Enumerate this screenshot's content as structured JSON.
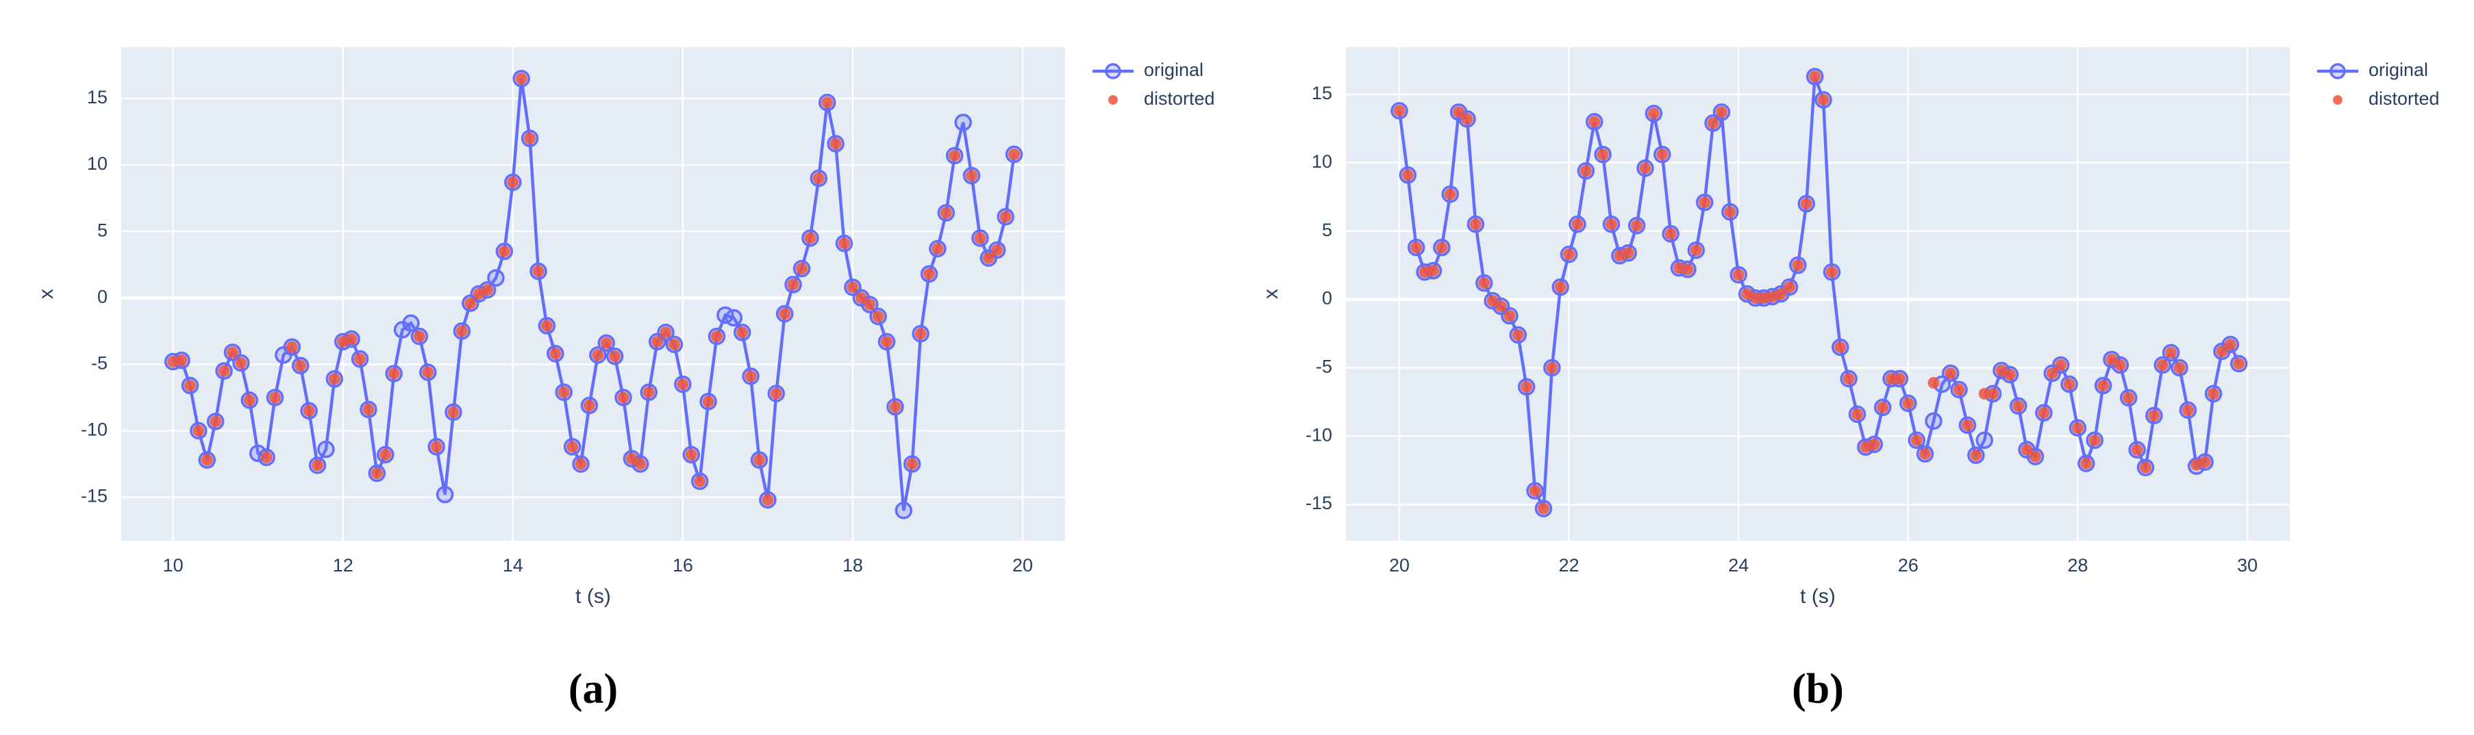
{
  "chart_data": [
    {
      "type": "line",
      "caption": "(a)",
      "x_label": "t (s)",
      "y_label": "x",
      "grid": true,
      "legend": "right",
      "x": [
        10,
        10.1,
        10.2,
        10.3,
        10.4,
        10.5,
        10.6,
        10.7,
        10.8,
        10.9,
        11,
        11.1,
        11.2,
        11.3,
        11.4,
        11.5,
        11.6,
        11.7,
        11.8,
        11.9,
        12,
        12.1,
        12.2,
        12.3,
        12.4,
        12.5,
        12.6,
        12.7,
        12.8,
        12.9,
        13,
        13.1,
        13.2,
        13.3,
        13.4,
        13.5,
        13.6,
        13.7,
        13.8,
        13.9,
        14,
        14.1,
        14.2,
        14.3,
        14.4,
        14.5,
        14.6,
        14.7,
        14.8,
        14.9,
        15,
        15.1,
        15.2,
        15.3,
        15.4,
        15.5,
        15.6,
        15.7,
        15.8,
        15.9,
        16,
        16.1,
        16.2,
        16.3,
        16.4,
        16.5,
        16.6,
        16.7,
        16.8,
        16.9,
        17,
        17.1,
        17.2,
        17.3,
        17.4,
        17.5,
        17.6,
        17.7,
        17.8,
        17.9,
        18,
        18.1,
        18.2,
        18.3,
        18.4,
        18.5,
        18.6,
        18.7,
        18.8,
        18.9,
        19,
        19.1,
        19.2,
        19.3,
        19.4,
        19.5,
        19.6,
        19.7,
        19.8,
        19.9
      ],
      "series": [
        {
          "name": "original",
          "color": "#636efa",
          "mode": "lines+markers",
          "values": [
            -4.8,
            -4.7,
            -6.6,
            -10,
            -12.2,
            -9.3,
            -5.5,
            -4.1,
            -4.9,
            -7.7,
            -11.7,
            -12,
            -7.5,
            -4.3,
            -3.7,
            -5.1,
            -8.5,
            -12.6,
            -11.4,
            -6.1,
            -3.3,
            -3.1,
            -4.6,
            -8.4,
            -13.2,
            -11.8,
            -5.7,
            -2.4,
            -1.9,
            -2.9,
            -5.6,
            -11.2,
            -14.8,
            -8.6,
            -2.5,
            -0.4,
            0.3,
            0.6,
            1.5,
            3.5,
            8.7,
            16.5,
            12,
            2,
            -2.1,
            -4.2,
            -7.1,
            -11.2,
            -12.5,
            -8.1,
            -4.3,
            -3.4,
            -4.4,
            -7.5,
            -12.1,
            -12.5,
            -7.1,
            -3.3,
            -2.6,
            -3.5,
            -6.5,
            -11.8,
            -13.8,
            -7.8,
            -2.9,
            -1.3,
            -1.5,
            -2.6,
            -5.9,
            -12.2,
            -15.2,
            -7.2,
            -1.2,
            1,
            2.2,
            4.5,
            9,
            14.7,
            11.6,
            4.1,
            0.8,
            0,
            -0.5,
            -1.4,
            -3.3,
            -8.2,
            -16,
            -12.5,
            -2.7,
            1.8,
            3.7,
            6.4,
            10.7,
            13.2,
            9.2,
            4.5,
            3,
            3.6,
            6.1,
            10.8
          ]
        },
        {
          "name": "distorted",
          "color": "#ef553b",
          "mode": "markers",
          "values": [
            -4.8,
            -4.7,
            -6.6,
            -10,
            -12.2,
            -9.3,
            -5.5,
            -4.1,
            -4.9,
            -7.7,
            null,
            -12,
            -7.5,
            null,
            -3.7,
            -5.1,
            -8.5,
            -12.6,
            null,
            -6.1,
            -3.3,
            -3.1,
            -4.6,
            -8.4,
            -13.2,
            -11.8,
            -5.7,
            null,
            null,
            -2.9,
            -5.6,
            -11.2,
            null,
            -8.6,
            -2.5,
            -0.4,
            0.3,
            0.6,
            null,
            3.5,
            8.7,
            16.5,
            12,
            2,
            -2.1,
            -4.2,
            -7.1,
            -11.2,
            -12.5,
            -8.1,
            -4.3,
            -3.4,
            -4.4,
            -7.5,
            -12.1,
            -12.5,
            -7.1,
            -3.3,
            -2.6,
            -3.5,
            -6.5,
            -11.8,
            -13.8,
            -7.8,
            -2.9,
            null,
            null,
            -2.6,
            -5.9,
            -12.2,
            -15.2,
            -7.2,
            -1.2,
            1,
            2.2,
            4.5,
            9,
            14.7,
            11.6,
            4.1,
            0.8,
            0,
            -0.5,
            -1.4,
            -3.3,
            -8.2,
            null,
            -12.5,
            -2.7,
            1.8,
            3.7,
            6.4,
            10.7,
            null,
            9.2,
            4.5,
            3,
            3.6,
            6.1,
            10.8
          ]
        }
      ],
      "xlim": [
        9.39,
        20.5
      ],
      "xticks": [
        10,
        12,
        14,
        16,
        18,
        20
      ],
      "ylim": [
        -18.27,
        18.86
      ],
      "yticks": [
        -15,
        -10,
        -5,
        0,
        5,
        10,
        15
      ]
    },
    {
      "type": "line",
      "caption": "(b)",
      "x_label": "t (s)",
      "y_label": "x",
      "grid": true,
      "legend": "right",
      "x": [
        20,
        20.1,
        20.2,
        20.3,
        20.4,
        20.5,
        20.6,
        20.7,
        20.8,
        20.9,
        21,
        21.1,
        21.2,
        21.3,
        21.4,
        21.5,
        21.6,
        21.7,
        21.8,
        21.9,
        22,
        22.1,
        22.2,
        22.3,
        22.4,
        22.5,
        22.6,
        22.7,
        22.8,
        22.9,
        23,
        23.1,
        23.2,
        23.3,
        23.4,
        23.5,
        23.6,
        23.7,
        23.8,
        23.9,
        24,
        24.1,
        24.2,
        24.3,
        24.4,
        24.5,
        24.6,
        24.7,
        24.8,
        24.9,
        25,
        25.1,
        25.2,
        25.3,
        25.4,
        25.5,
        25.6,
        25.7,
        25.8,
        25.9,
        26,
        26.1,
        26.2,
        26.3,
        26.4,
        26.5,
        26.6,
        26.7,
        26.8,
        26.9,
        27,
        27.1,
        27.2,
        27.3,
        27.4,
        27.5,
        27.6,
        27.7,
        27.8,
        27.9,
        28,
        28.1,
        28.2,
        28.3,
        28.4,
        28.5,
        28.6,
        28.7,
        28.8,
        28.9,
        29,
        29.1,
        29.2,
        29.3,
        29.4,
        29.5,
        29.6,
        29.7,
        29.8,
        29.9
      ],
      "series": [
        {
          "name": "original",
          "color": "#636efa",
          "mode": "lines+markers",
          "values": [
            13.8,
            9.1,
            3.8,
            2,
            2.1,
            3.8,
            7.7,
            13.7,
            13.2,
            5.5,
            1.2,
            -0.1,
            -0.5,
            -1.2,
            -2.6,
            -6.4,
            -14,
            -15.3,
            -5,
            0.9,
            3.3,
            5.5,
            9.4,
            13,
            10.6,
            5.5,
            3.2,
            3.4,
            5.4,
            9.6,
            13.6,
            10.6,
            4.8,
            2.3,
            2.2,
            3.6,
            7.1,
            12.9,
            13.7,
            6.4,
            1.8,
            0.4,
            0.1,
            0.1,
            0.2,
            0.4,
            0.9,
            2.5,
            7,
            16.3,
            14.6,
            2,
            -3.5,
            -5.8,
            -8.4,
            -10.8,
            -10.6,
            -7.9,
            -5.8,
            -5.8,
            -7.6,
            -10.3,
            -11.3,
            -8.9,
            -6.2,
            -5.4,
            -6.6,
            -9.2,
            -11.4,
            -10.3,
            -6.9,
            -5.2,
            -5.5,
            -7.8,
            -11,
            -11.5,
            -8.3,
            -5.4,
            -4.8,
            -6.2,
            -9.4,
            -12,
            -10.3,
            -6.3,
            -4.4,
            -4.8,
            -7.2,
            -11,
            -12.3,
            -8.5,
            -4.8,
            -3.9,
            -5,
            -8.1,
            -12.2,
            -11.9,
            -6.9,
            -3.8,
            -3.3,
            -4.7
          ]
        },
        {
          "name": "distorted",
          "color": "#ef553b",
          "mode": "markers",
          "values": [
            13.8,
            9.1,
            3.8,
            2,
            2.1,
            3.8,
            7.7,
            13.7,
            13.2,
            5.5,
            1.2,
            -0.1,
            -0.5,
            -1.2,
            -2.6,
            -6.4,
            -14,
            -15.3,
            -5,
            0.9,
            3.3,
            5.5,
            9.4,
            13,
            10.6,
            5.5,
            3.2,
            3.4,
            5.4,
            9.6,
            13.6,
            10.6,
            4.8,
            2.3,
            2.2,
            3.6,
            7.1,
            12.9,
            13.7,
            6.4,
            1.8,
            0.4,
            0.1,
            0.1,
            0.2,
            0.4,
            0.9,
            2.5,
            7,
            16.3,
            14.6,
            2,
            -3.5,
            -5.8,
            -8.4,
            -10.8,
            -10.6,
            -7.9,
            -5.8,
            -5.8,
            -7.6,
            -10.3,
            -11.3,
            -6.1,
            null,
            -5.4,
            -6.6,
            -9.2,
            -11.4,
            -6.9,
            -6.9,
            -5.2,
            -5.5,
            -7.8,
            -11,
            -11.5,
            -8.3,
            -5.4,
            -4.8,
            -6.2,
            -9.4,
            -12,
            -10.3,
            -6.3,
            -4.4,
            -4.8,
            -7.2,
            -11,
            -12.3,
            -8.5,
            -4.8,
            -3.9,
            -5,
            -8.1,
            -12.1,
            -11.9,
            -6.9,
            -3.8,
            -3.3,
            -4.7
          ]
        }
      ],
      "xlim": [
        19.37,
        30.5
      ],
      "xticks": [
        20,
        22,
        24,
        26,
        28,
        30
      ],
      "ylim": [
        -17.65,
        18.45
      ],
      "yticks": [
        -15,
        -10,
        -5,
        0,
        5,
        10,
        15
      ]
    }
  ]
}
